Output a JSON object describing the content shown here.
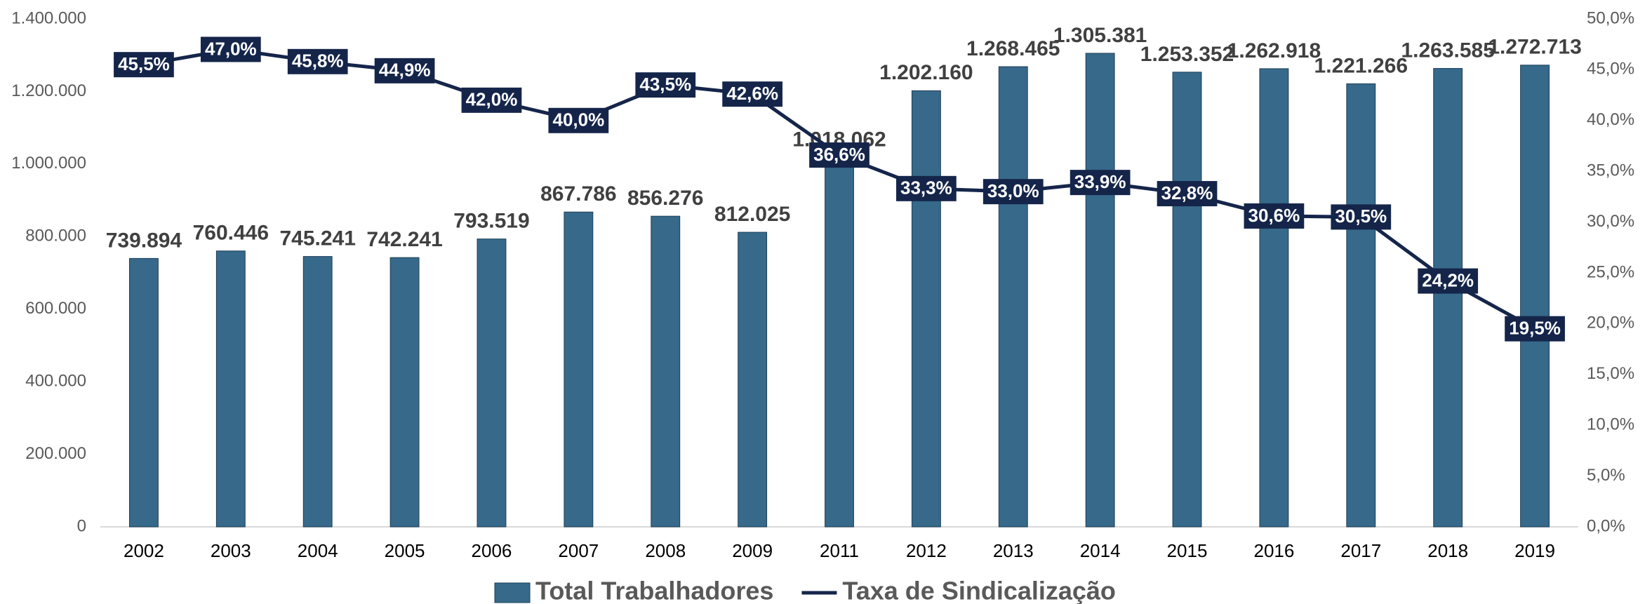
{
  "chart_data": {
    "type": "bar",
    "categories": [
      "2002",
      "2003",
      "2004",
      "2005",
      "2006",
      "2007",
      "2008",
      "2009",
      "2011",
      "2012",
      "2013",
      "2014",
      "2015",
      "2016",
      "2017",
      "2018",
      "2019"
    ],
    "series": [
      {
        "name": "Total Trabalhadores",
        "type": "bar",
        "color": "#36698a",
        "values": [
          739894,
          760446,
          745241,
          742241,
          793519,
          867786,
          856276,
          812025,
          1018062,
          1202160,
          1268465,
          1305381,
          1253352,
          1262918,
          1221266,
          1263585,
          1272713
        ],
        "value_labels": [
          "739.894",
          "760.446",
          "745.241",
          "742.241",
          "793.519",
          "867.786",
          "856.276",
          "812.025",
          "1.018.062",
          "1.202.160",
          "1.268.465",
          "1.305.381",
          "1.253.352",
          "1.262.918",
          "1.221.266",
          "1.263.585",
          "1.272.713"
        ]
      },
      {
        "name": "Taxa de Sindicalização",
        "type": "line",
        "axis": "y2",
        "color": "#15254a",
        "values": [
          45.5,
          47.0,
          45.8,
          44.9,
          42.0,
          40.0,
          43.5,
          42.6,
          36.6,
          33.3,
          33.0,
          33.9,
          32.8,
          30.6,
          30.5,
          24.2,
          19.5
        ],
        "value_labels": [
          "45,5%",
          "47,0%",
          "45,8%",
          "44,9%",
          "42,0%",
          "40,0%",
          "43,5%",
          "42,6%",
          "36,6%",
          "33,3%",
          "33,0%",
          "33,9%",
          "32,8%",
          "30,6%",
          "30,5%",
          "24,2%",
          "19,5%"
        ]
      }
    ],
    "ylim": [
      0,
      1400000
    ],
    "yticks": [
      0,
      {
        "value": 200000,
        "label": "200.000"
      },
      {
        "value": 400000,
        "label": "400.000"
      },
      {
        "value": 600000,
        "label": "600.000"
      },
      {
        "value": 800000,
        "label": "800.000"
      },
      {
        "value": 1000000,
        "label": "1.000.000"
      },
      {
        "value": 1200000,
        "label": "1.200.000"
      },
      {
        "value": 1400000,
        "label": "1.400.000"
      }
    ],
    "y2lim": [
      0,
      50
    ],
    "y2ticks": [
      {
        "value": 0,
        "label": "0,0%"
      },
      {
        "value": 5,
        "label": "5,0%"
      },
      {
        "value": 10,
        "label": "10,0%"
      },
      {
        "value": 15,
        "label": "15,0%"
      },
      {
        "value": 20,
        "label": "20,0%"
      },
      {
        "value": 25,
        "label": "25,0%"
      },
      {
        "value": 30,
        "label": "30,0%"
      },
      {
        "value": 35,
        "label": "35,0%"
      },
      {
        "value": 40,
        "label": "40,0%"
      },
      {
        "value": 45,
        "label": "45,0%"
      },
      {
        "value": 50,
        "label": "50,0%"
      }
    ],
    "legend": "bottom"
  }
}
